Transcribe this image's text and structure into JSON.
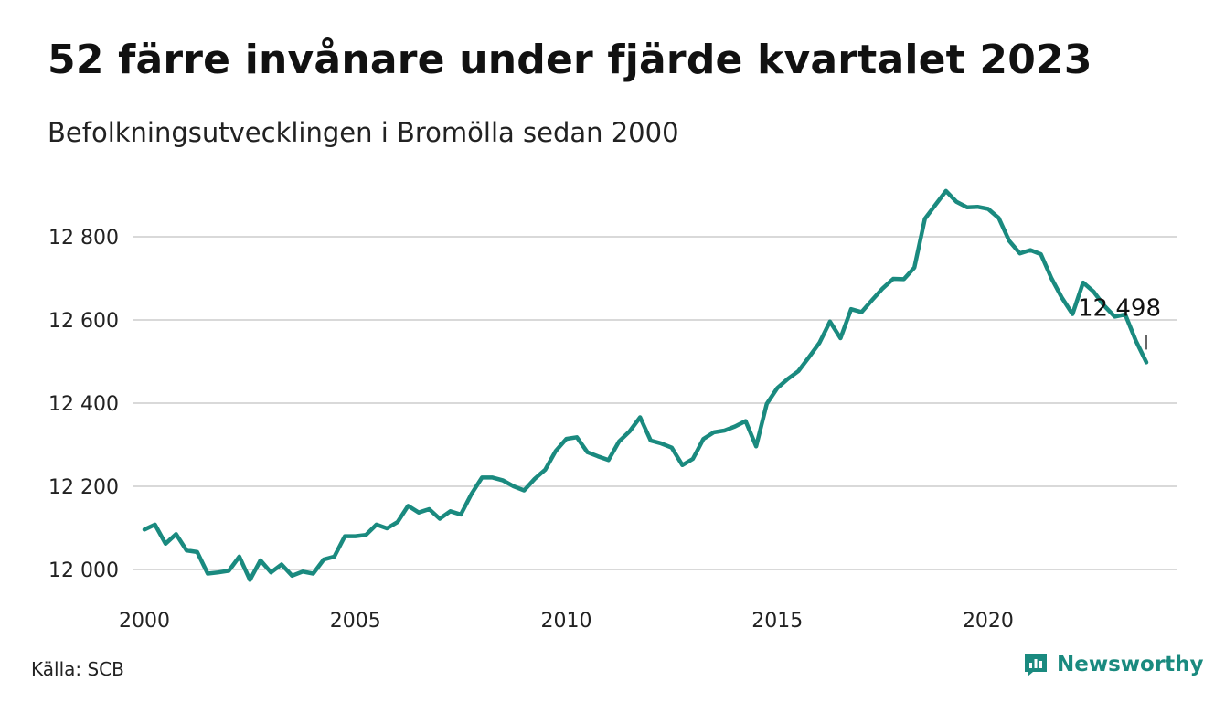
{
  "title": "52 färre invånare under fjärde kvartalet 2023",
  "subtitle": "Befolkningsutvecklingen i Bromölla sedan 2000",
  "source": "Källa: SCB",
  "brand": {
    "name": "Newsworthy",
    "icon": "newsworthy-logo-icon",
    "color": "#1a8a7f"
  },
  "chart_data": {
    "type": "line",
    "title": "52 färre invånare under fjärde kvartalet 2023",
    "subtitle": "Befolkningsutvecklingen i Bromölla sedan 2000",
    "xlabel": "",
    "ylabel": "",
    "x_range": [
      2000.0,
      2023.75
    ],
    "ylim": [
      11940,
      12960
    ],
    "y_ticks": [
      12000,
      12200,
      12400,
      12600,
      12800
    ],
    "y_tick_labels": [
      "12 000",
      "12 200",
      "12 400",
      "12 600",
      "12 800"
    ],
    "x_ticks": [
      2000,
      2005,
      2010,
      2015,
      2020
    ],
    "x_tick_labels": [
      "2000",
      "2005",
      "2010",
      "2015",
      "2020"
    ],
    "grid": true,
    "line_color": "#1a8a7f",
    "annotation": {
      "x": 2023.75,
      "y": 12498,
      "label": "12 498"
    },
    "series": [
      {
        "name": "",
        "x": [
          2000.0,
          2000.25,
          2000.5,
          2000.75,
          2001.0,
          2001.25,
          2001.5,
          2001.75,
          2002.0,
          2002.25,
          2002.5,
          2002.75,
          2003.0,
          2003.25,
          2003.5,
          2003.75,
          2004.0,
          2004.25,
          2004.5,
          2004.75,
          2005.0,
          2005.25,
          2005.5,
          2005.75,
          2006.0,
          2006.25,
          2006.5,
          2006.75,
          2007.0,
          2007.25,
          2007.5,
          2007.75,
          2008.0,
          2008.25,
          2008.5,
          2008.75,
          2009.0,
          2009.25,
          2009.5,
          2009.75,
          2010.0,
          2010.25,
          2010.5,
          2010.75,
          2011.0,
          2011.25,
          2011.5,
          2011.75,
          2012.0,
          2012.25,
          2012.5,
          2012.75,
          2013.0,
          2013.25,
          2013.5,
          2013.75,
          2014.0,
          2014.25,
          2014.5,
          2014.75,
          2015.0,
          2015.25,
          2015.5,
          2015.75,
          2016.0,
          2016.25,
          2016.5,
          2016.75,
          2017.0,
          2017.25,
          2017.5,
          2017.75,
          2018.0,
          2018.25,
          2018.5,
          2018.75,
          2019.0,
          2019.25,
          2019.5,
          2019.75,
          2020.0,
          2020.25,
          2020.5,
          2020.75,
          2021.0,
          2021.25,
          2021.5,
          2021.75,
          2022.0,
          2022.25,
          2022.5,
          2022.75,
          2023.0,
          2023.25,
          2023.5,
          2023.75
        ],
        "values": [
          12096,
          12108,
          12062,
          12085,
          12046,
          12042,
          11990,
          11993,
          11997,
          12031,
          11975,
          12022,
          11993,
          12012,
          11985,
          11995,
          11990,
          12024,
          12031,
          12080,
          12080,
          12083,
          12108,
          12099,
          12114,
          12153,
          12137,
          12145,
          12122,
          12140,
          12132,
          12181,
          12221,
          12221,
          12214,
          12200,
          12190,
          12218,
          12240,
          12285,
          12314,
          12318,
          12282,
          12272,
          12263,
          12308,
          12332,
          12366,
          12310,
          12303,
          12293,
          12251,
          12266,
          12314,
          12330,
          12334,
          12344,
          12357,
          12296,
          12398,
          12436,
          12458,
          12477,
          12510,
          12545,
          12596,
          12556,
          12626,
          12619,
          12648,
          12676,
          12699,
          12698,
          12726,
          12843,
          12877,
          12910,
          12884,
          12871,
          12872,
          12867,
          12845,
          12790,
          12760,
          12768,
          12758,
          12700,
          12653,
          12614,
          12690,
          12668,
          12634,
          12608,
          12613,
          12550,
          12498
        ]
      }
    ]
  }
}
